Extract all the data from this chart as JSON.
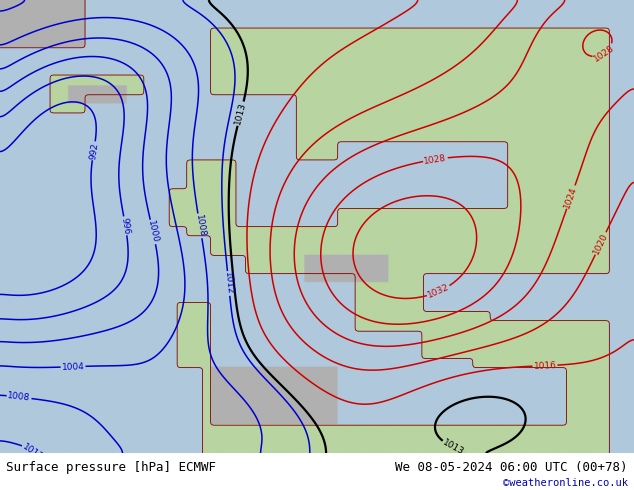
{
  "title_left": "Surface pressure [hPa] ECMWF",
  "title_right": "We 08-05-2024 06:00 UTC (00+78)",
  "credit": "©weatheronline.co.uk",
  "bg_ocean": "#b0c8dc",
  "bg_land_green": "#b8d4a0",
  "bg_land_grey": "#b0b0b0",
  "contour_low_color": "#0000cc",
  "contour_high_color": "#cc0000",
  "contour_mid_color": "#000000",
  "coast_color": "#800000",
  "label_fontsize": 6.5,
  "title_fontsize": 9,
  "credit_fontsize": 7.5,
  "figsize": [
    6.34,
    4.9
  ],
  "dpi": 100,
  "lon_min": -30,
  "lon_max": 45,
  "lat_min": 27,
  "lat_max": 75,
  "pressure_levels_low": [
    992,
    996,
    1000,
    1004,
    1008,
    1012
  ],
  "pressure_levels_high": [
    1016,
    1020,
    1024,
    1028,
    1032
  ],
  "pressure_levels_mid": [
    1013
  ],
  "pressure_blobs": [
    {
      "lon0": -28,
      "lat0": 50,
      "amp": -28,
      "sx": 14,
      "sy": 10
    },
    {
      "lon0": -22,
      "lat0": 63,
      "amp": -10,
      "sx": 7,
      "sy": 5
    },
    {
      "lon0": -15,
      "lat0": 68,
      "amp": -8,
      "sx": 8,
      "sy": 5
    },
    {
      "lon0": -6,
      "lat0": 29,
      "amp": -10,
      "sx": 9,
      "sy": 6
    },
    {
      "lon0": 18,
      "lat0": 48,
      "amp": 20,
      "sx": 12,
      "sy": 9
    },
    {
      "lon0": 35,
      "lat0": 62,
      "amp": 8,
      "sx": 10,
      "sy": 8
    },
    {
      "lon0": 42,
      "lat0": 72,
      "amp": 10,
      "sx": 7,
      "sy": 5
    },
    {
      "lon0": 25,
      "lat0": 33,
      "amp": -6,
      "sx": 8,
      "sy": 5
    },
    {
      "lon0": -10,
      "lat0": 43,
      "amp": -4,
      "sx": 6,
      "sy": 5
    }
  ],
  "base_pressure": 1015.0,
  "smooth_sigma": 4
}
